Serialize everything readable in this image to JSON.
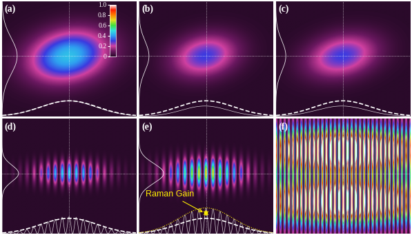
{
  "chart_data": [
    {
      "type": "heatmap",
      "title": "(a)",
      "peak": 0.45,
      "sigma_x": 0.42,
      "sigma_y": 0.3,
      "colorbar_range": [
        0,
        1.0
      ],
      "colorbar_ticks": [
        0,
        0.2,
        0.4,
        0.6,
        0.8,
        1.0
      ]
    },
    {
      "type": "heatmap",
      "title": "(b)",
      "peak": 0.3,
      "sigma_x": 0.35,
      "sigma_y": 0.25
    },
    {
      "type": "heatmap",
      "title": "(c)",
      "peak": 0.3,
      "sigma_x": 0.38,
      "sigma_y": 0.25
    },
    {
      "type": "heatmap",
      "title": "(d)",
      "peak": 0.5,
      "sigma_x": 0.38,
      "sigma_y": 0.14,
      "fringes": 19
    },
    {
      "type": "heatmap",
      "title": "(e)",
      "peak": 0.75,
      "sigma_x": 0.4,
      "sigma_y": 0.17,
      "fringes": 19,
      "annotation": "Raman Gain"
    },
    {
      "type": "heatmap",
      "title": "(f)",
      "peak": 1.3,
      "sigma_x": 1.2,
      "sigma_y": 0.3,
      "fringes": 32,
      "lobes": 2
    }
  ]
}
